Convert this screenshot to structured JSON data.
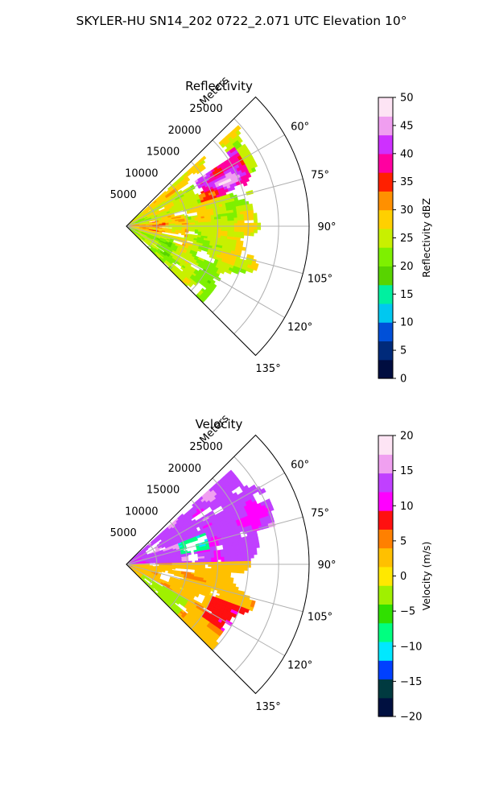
{
  "figure": {
    "suptitle": "SKYLER-HU  SN14_202  0722_2.071 UTC Elevation 10°"
  },
  "chart_data": [
    {
      "type": "heatmap",
      "subtype": "polar-sector (PPI)",
      "title": "Reflectivity",
      "radial_axis_label": "Meters",
      "radial_ticks": [
        "5000",
        "10000",
        "15000",
        "20000",
        "25000"
      ],
      "radial_tick_values": [
        5000,
        10000,
        15000,
        20000,
        25000
      ],
      "rmax": 30000,
      "angular_range_deg": [
        45,
        135
      ],
      "angular_ticks": [
        "60°",
        "75°",
        "90°",
        "105°",
        "120°",
        "135°"
      ],
      "angular_tick_values": [
        60,
        75,
        90,
        105,
        120,
        135
      ],
      "grid": true,
      "colorbar": {
        "label": "Reflectivity dBZ",
        "ticks": [
          "0",
          "5",
          "10",
          "15",
          "20",
          "25",
          "30",
          "35",
          "40",
          "45",
          "50"
        ],
        "range": [
          0,
          50
        ],
        "colormap": "NWSRef",
        "stops": [
          "#000d40",
          "#002a7a",
          "#0050d8",
          "#00c8f0",
          "#00f0a0",
          "#58d400",
          "#7ef000",
          "#c8f000",
          "#ffd000",
          "#ff9000",
          "#ff2000",
          "#ff00a0",
          "#ce30ff",
          "#f09ef0",
          "#fde4f4"
        ]
      },
      "features": [
        {
          "azimuth_range": [
            55,
            70
          ],
          "range_m": [
            14000,
            22000
          ],
          "value": 42
        },
        {
          "azimuth_range": [
            83,
            98
          ],
          "range_m": [
            1500,
            9000
          ],
          "value": 35
        },
        {
          "azimuth_range": [
            95,
            135
          ],
          "range_m": [
            4000,
            22000
          ],
          "value": 22
        }
      ]
    },
    {
      "type": "heatmap",
      "subtype": "polar-sector (PPI)",
      "title": "Velocity",
      "radial_axis_label": "Meters",
      "radial_ticks": [
        "5000",
        "10000",
        "15000",
        "20000",
        "25000"
      ],
      "radial_tick_values": [
        5000,
        10000,
        15000,
        20000,
        25000
      ],
      "rmax": 30000,
      "angular_range_deg": [
        45,
        135
      ],
      "angular_ticks": [
        "60°",
        "75°",
        "90°",
        "105°",
        "120°",
        "135°"
      ],
      "angular_tick_values": [
        60,
        75,
        90,
        105,
        120,
        135
      ],
      "grid": true,
      "colorbar": {
        "label": "Velocity (m/s)",
        "ticks": [
          "−20",
          "−15",
          "−10",
          "−5",
          "0",
          "5",
          "10",
          "15",
          "20"
        ],
        "range": [
          -20,
          20
        ],
        "colormap": "NWSVel",
        "stops": [
          "#001040",
          "#003a40",
          "#0040ff",
          "#00e8ff",
          "#00ff80",
          "#30e000",
          "#a0f000",
          "#ffe800",
          "#ffc000",
          "#ff8000",
          "#ff1010",
          "#ff00ff",
          "#c040ff",
          "#f0a0f0",
          "#fde4f4"
        ]
      },
      "features": [
        {
          "azimuth_range": [
            55,
            85
          ],
          "range_m": [
            3000,
            25000
          ],
          "value": 14
        },
        {
          "azimuth_range": [
            70,
            76
          ],
          "range_m": [
            9000,
            14000
          ],
          "value": -10
        },
        {
          "azimuth_range": [
            88,
            135
          ],
          "range_m": [
            1000,
            25000
          ],
          "value": 2
        }
      ]
    }
  ]
}
